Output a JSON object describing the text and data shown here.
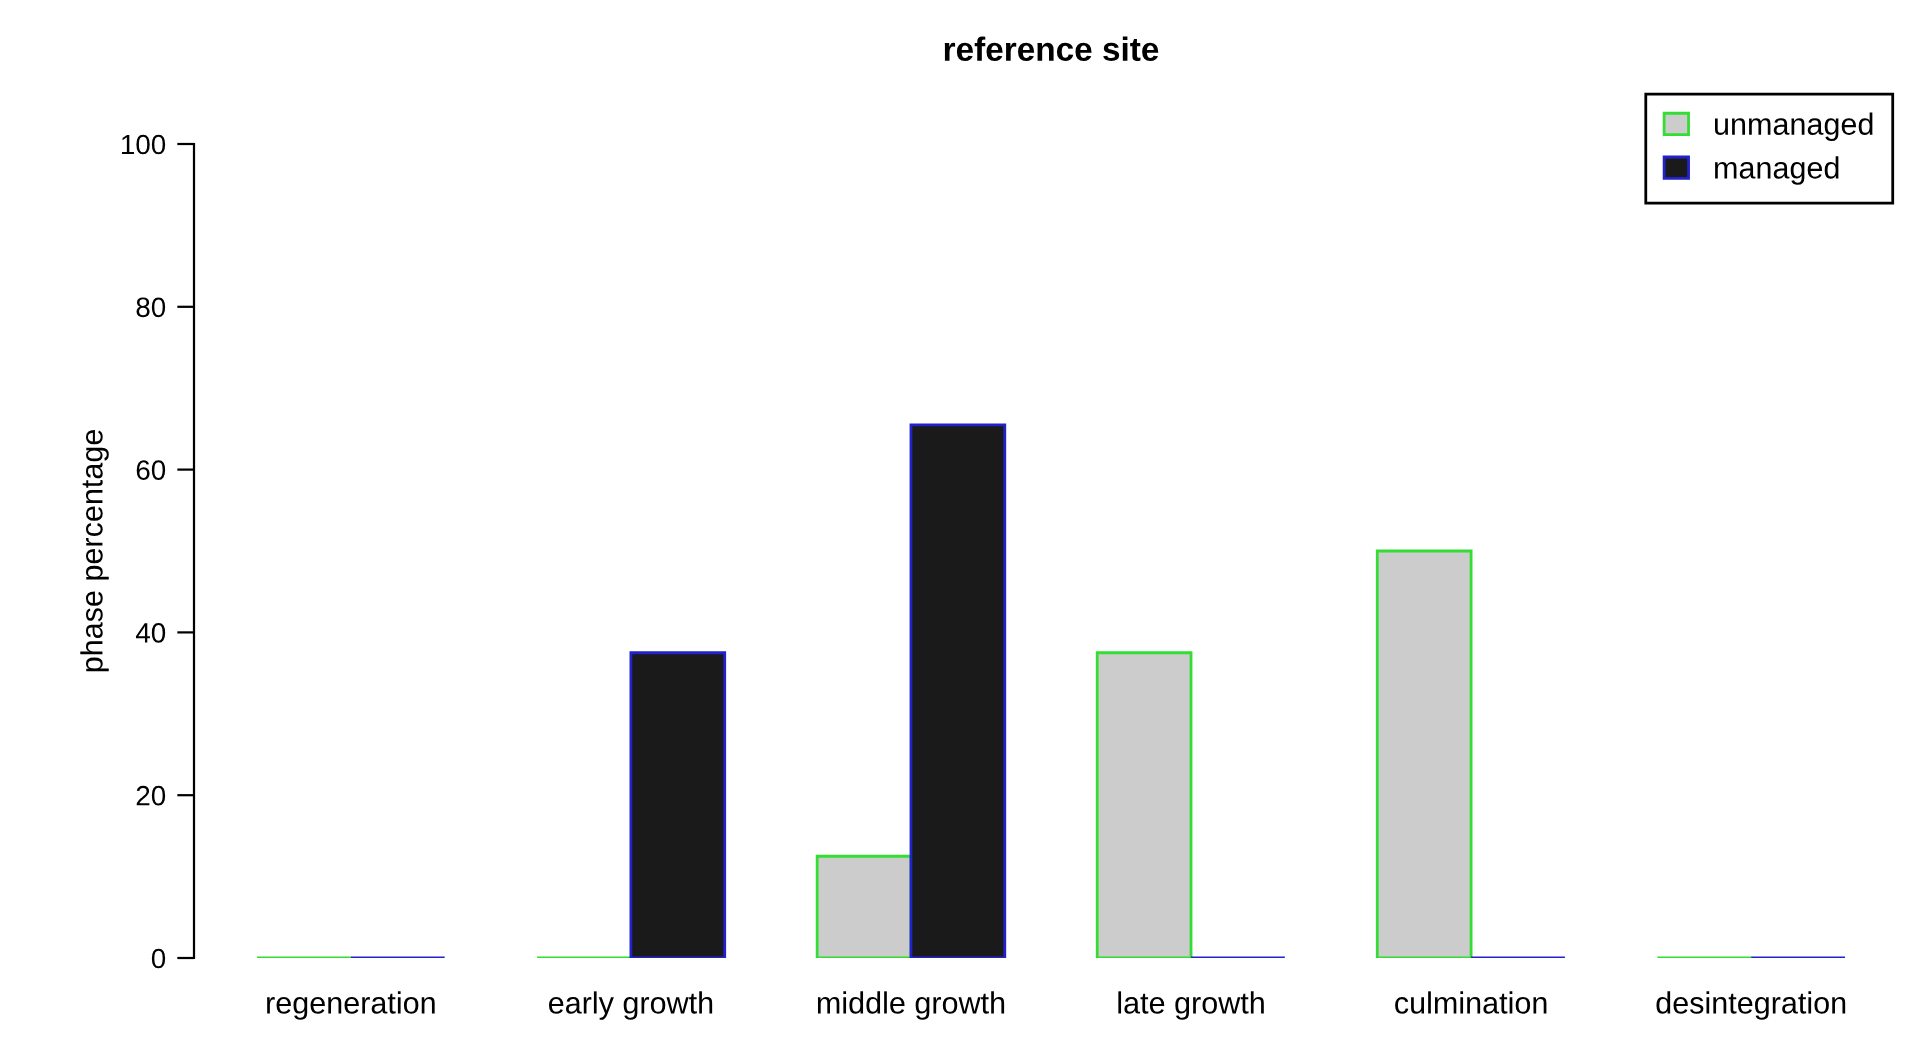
{
  "chart_data": {
    "type": "bar",
    "title": "reference site",
    "ylabel": "phase percentage",
    "categories": [
      "regeneration",
      "early growth",
      "middle growth",
      "late growth",
      "culmination",
      "desintegration"
    ],
    "series": [
      {
        "name": "unmanaged",
        "color": "#cccccc",
        "colors": [
          "#33dd33",
          "#33dd33",
          "#cccccc",
          "#cccccc",
          "#cccccc",
          "#33dd33"
        ],
        "values": [
          0,
          0,
          12.5,
          37.5,
          50,
          0
        ]
      },
      {
        "name": "managed",
        "color": "#1a1a1a",
        "colors": [
          "#2222cc",
          "#1a1a1a",
          "#1a1a1a",
          "#2222cc",
          "#2222cc",
          "#2222cc"
        ],
        "values": [
          0,
          37.5,
          65.5,
          0,
          0,
          0
        ]
      }
    ],
    "ylim": [
      0,
      100
    ],
    "yticks": [
      0,
      20,
      40,
      60,
      80,
      100
    ],
    "grid": false,
    "legend": "top right"
  }
}
